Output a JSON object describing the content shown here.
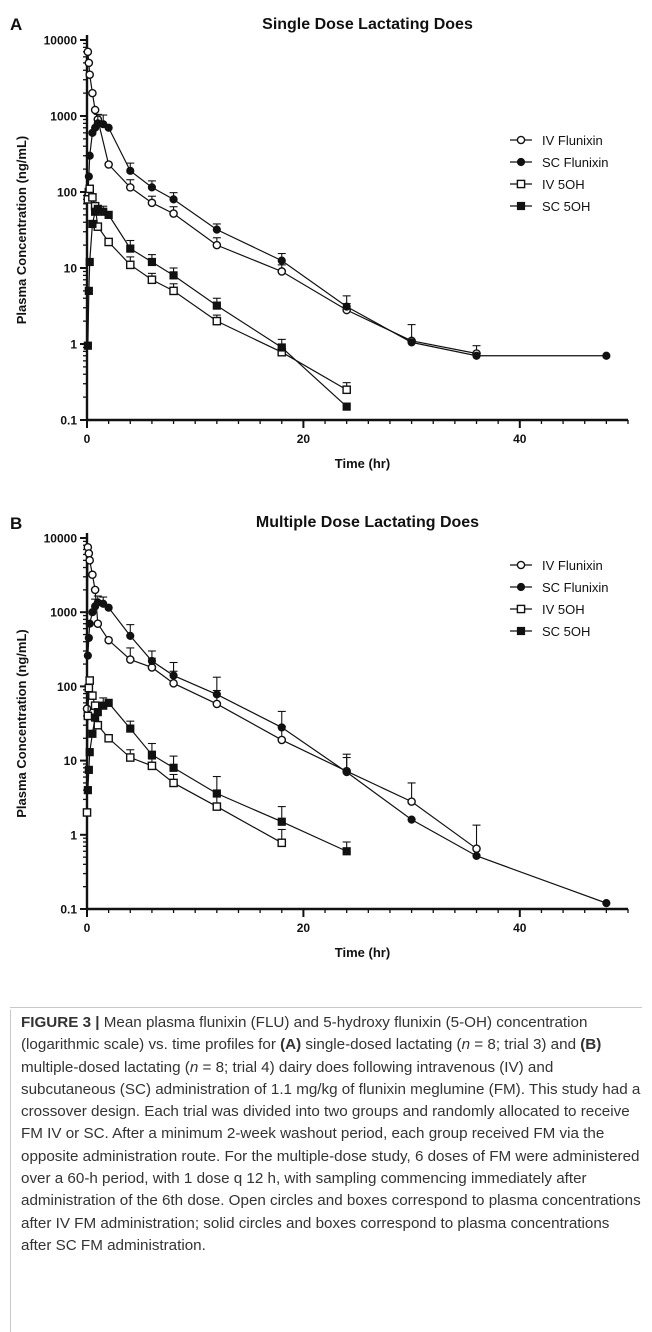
{
  "chart_data": [
    {
      "type": "line",
      "panel_label": "A",
      "title": "Single Dose Lactating Does",
      "xlabel": "Time (hr)",
      "ylabel": "Plasma Concentration (ng/mL)",
      "xlim": [
        0,
        50
      ],
      "ylim": [
        0.1,
        10000
      ],
      "yscale": "log",
      "x_ticks": [
        0,
        20,
        40
      ],
      "y_ticks": [
        0.1,
        1,
        10,
        100,
        1000,
        10000
      ],
      "y_tick_labels": [
        "0.1",
        "1",
        "10",
        "100",
        "1000",
        "10000"
      ],
      "x_tick_labels": [
        "0",
        "20",
        "40"
      ],
      "legend_position": "right",
      "series": [
        {
          "name": "IV Flunixin",
          "marker": "open-circle",
          "x": [
            0.08,
            0.17,
            0.25,
            0.5,
            0.75,
            1,
            2,
            4,
            6,
            8,
            12,
            18,
            24,
            30,
            36
          ],
          "y": [
            7000,
            5000,
            3500,
            2000,
            1200,
            900,
            230,
            115,
            72,
            52,
            20,
            9,
            2.8,
            1.1,
            0.75
          ],
          "err": [
            0,
            0,
            0,
            0,
            0,
            0,
            0,
            30,
            16,
            12,
            5,
            2,
            0.6,
            0.7,
            0.2
          ]
        },
        {
          "name": "SC Flunixin",
          "marker": "filled-circle",
          "x": [
            0.08,
            0.17,
            0.25,
            0.5,
            0.75,
            1,
            1.5,
            2,
            4,
            6,
            8,
            12,
            18,
            24,
            30,
            36,
            48
          ],
          "y": [
            90,
            160,
            300,
            600,
            700,
            800,
            780,
            700,
            190,
            115,
            80,
            32,
            12.5,
            3.1,
            1.05,
            0.7,
            0.7
          ],
          "err": [
            0,
            0,
            0,
            0,
            0,
            250,
            250,
            0,
            50,
            25,
            18,
            6,
            3,
            1.2,
            0,
            0,
            0
          ]
        },
        {
          "name": "IV 5OH",
          "marker": "open-square",
          "x": [
            0.08,
            0.17,
            0.25,
            0.5,
            0.75,
            1,
            2,
            4,
            6,
            8,
            12,
            18,
            24
          ],
          "y": [
            80,
            100,
            110,
            85,
            65,
            35,
            22,
            11,
            7,
            5,
            2,
            0.78,
            0.25
          ],
          "err": [
            0,
            0,
            0,
            0,
            0,
            0,
            0,
            3,
            1.5,
            1.2,
            0.4,
            0.15,
            0.06
          ]
        },
        {
          "name": "SC 5OH",
          "marker": "filled-square",
          "x": [
            0.08,
            0.17,
            0.25,
            0.5,
            0.75,
            1,
            1.5,
            2,
            4,
            6,
            8,
            12,
            18,
            24
          ],
          "y": [
            0.95,
            5,
            12,
            38,
            55,
            60,
            55,
            50,
            18,
            12,
            8,
            3.2,
            0.9,
            0.15
          ],
          "err": [
            0,
            0,
            0,
            0,
            0,
            0,
            10,
            0,
            5,
            3,
            2,
            0.8,
            0.25,
            0
          ]
        }
      ]
    },
    {
      "type": "line",
      "panel_label": "B",
      "title": "Multiple Dose Lactating Does",
      "xlabel": "Time (hr)",
      "ylabel": "Plasma Concentration (ng/mL)",
      "xlim": [
        0,
        50
      ],
      "ylim": [
        0.1,
        10000
      ],
      "yscale": "log",
      "x_ticks": [
        0,
        20,
        40
      ],
      "y_ticks": [
        0.1,
        1,
        10,
        100,
        1000,
        10000
      ],
      "y_tick_labels": [
        "0.1",
        "1",
        "10",
        "100",
        "1000",
        "10000"
      ],
      "x_tick_labels": [
        "0",
        "20",
        "40"
      ],
      "legend_position": "top-right",
      "series": [
        {
          "name": "IV Flunixin",
          "marker": "open-circle",
          "x": [
            0,
            0.08,
            0.17,
            0.25,
            0.5,
            0.75,
            1,
            2,
            4,
            6,
            8,
            12,
            18,
            24,
            30,
            36
          ],
          "y": [
            50,
            7500,
            6200,
            5000,
            3200,
            2000,
            700,
            420,
            230,
            180,
            110,
            58,
            19,
            7.2,
            2.8,
            0.65
          ],
          "err": [
            0,
            0,
            0,
            0,
            0,
            0,
            0,
            0,
            100,
            60,
            50,
            30,
            10,
            5,
            2.2,
            0.7
          ]
        },
        {
          "name": "SC Flunixin",
          "marker": "filled-circle",
          "x": [
            0.08,
            0.17,
            0.25,
            0.5,
            0.75,
            1,
            1.5,
            2,
            4,
            6,
            8,
            12,
            18,
            24,
            30,
            36,
            48
          ],
          "y": [
            260,
            450,
            700,
            1000,
            1200,
            1350,
            1300,
            1150,
            480,
            220,
            140,
            78,
            28,
            7,
            1.6,
            0.52,
            0.12
          ],
          "err": [
            0,
            0,
            0,
            0,
            300,
            300,
            300,
            0,
            200,
            80,
            70,
            55,
            18,
            4,
            0,
            0,
            0
          ]
        },
        {
          "name": "IV 5OH",
          "marker": "open-square",
          "x": [
            0,
            0.08,
            0.17,
            0.25,
            0.5,
            0.75,
            1,
            2,
            4,
            6,
            8,
            12,
            18
          ],
          "y": [
            2,
            40,
            95,
            120,
            75,
            55,
            30,
            20,
            11,
            8.5,
            5,
            2.4,
            0.78
          ],
          "err": [
            0,
            0,
            0,
            0,
            0,
            0,
            0,
            0,
            3,
            2,
            1.5,
            1,
            0.4
          ]
        },
        {
          "name": "SC 5OH",
          "marker": "filled-square",
          "x": [
            0.08,
            0.17,
            0.25,
            0.5,
            0.75,
            1,
            1.5,
            2,
            4,
            6,
            8,
            12,
            18,
            24
          ],
          "y": [
            4,
            7.5,
            13,
            23,
            38,
            45,
            55,
            60,
            27,
            12,
            8,
            3.6,
            1.5,
            0.6
          ],
          "err": [
            0,
            0,
            0,
            0,
            0,
            0,
            15,
            0,
            7,
            5,
            3.5,
            2.5,
            0.9,
            0.2
          ]
        }
      ]
    }
  ],
  "caption": {
    "label": "FIGURE 3 |",
    "seg1": " Mean plasma flunixin (FLU) and 5-hydroxy flunixin (5-OH) concentration (logarithmic scale) vs. time profiles for ",
    "a": "(A)",
    "seg2": " single-dosed lactating (",
    "n1": "n",
    "seg3": " = 8; trial 3) and ",
    "b": "(B)",
    "seg4": " multiple-dosed lactating (",
    "n2": "n",
    "seg5": " = 8; trial 4) dairy does following intravenous (IV) and subcutaneous (SC) administration of 1.1 mg/kg of flunixin meglumine (FM). This study had a crossover design. Each trial was divided into two groups and randomly allocated to receive FM IV or SC. After a minimum 2-week washout period, each group received FM via the opposite administration route. For the multiple-dose study, 6 doses of FM were administered over a 60-h period, with 1 dose q 12 h, with sampling commencing immediately after administration of the 6th dose. Open circles and boxes correspond to plasma concentrations after IV FM administration; solid circles and boxes correspond to plasma concentrations after SC FM administration."
  }
}
